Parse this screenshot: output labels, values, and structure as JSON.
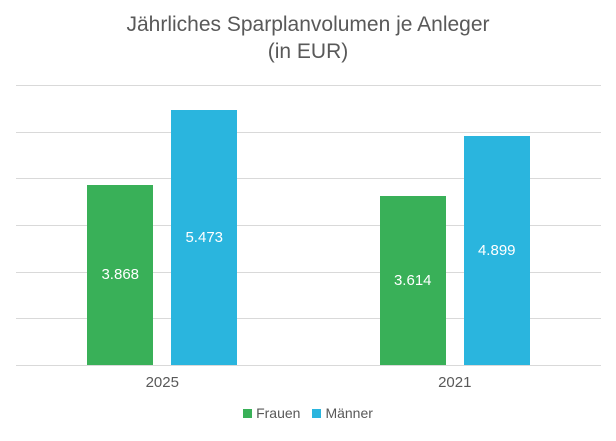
{
  "title": {
    "line1": "Jährliches Sparplanvolumen je Anleger",
    "line2": "(in EUR)"
  },
  "chart_data": {
    "type": "bar",
    "categories": [
      "2025",
      "2021"
    ],
    "series": [
      {
        "name": "Frauen",
        "color": "#39B058",
        "values": [
          3868,
          3614
        ],
        "labels": [
          "3.868",
          "3.614"
        ]
      },
      {
        "name": "Männer",
        "color": "#2AB5DE",
        "values": [
          5473,
          4899
        ],
        "labels": [
          "5.473",
          "4.899"
        ]
      }
    ],
    "title": "Jährliches Sparplanvolumen je Anleger (in EUR)",
    "xlabel": "",
    "ylabel": "",
    "ylim": [
      0,
      6000
    ],
    "gridline_step": 1000,
    "grid": "horizontal-only",
    "y_axis_labels_visible": false,
    "legend_position": "bottom",
    "data_labels": "inside-center"
  },
  "colors": {
    "background": "#FFFFFF",
    "title_text": "#595959",
    "axis_text": "#595959",
    "gridline": "#D9D9D9",
    "data_label_text": "#FFFFFF"
  }
}
